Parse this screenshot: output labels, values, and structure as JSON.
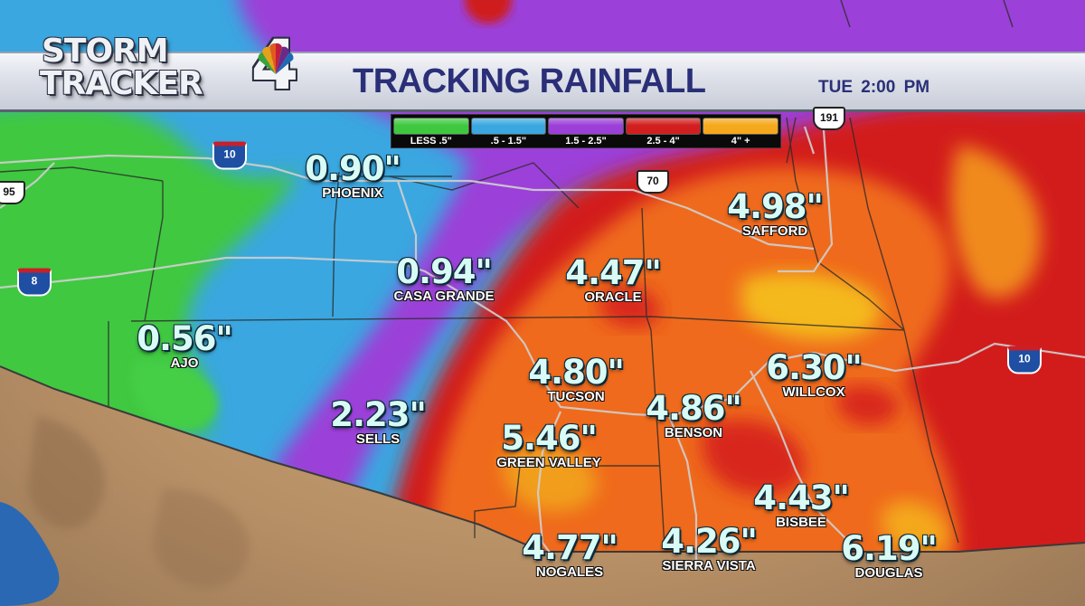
{
  "header": {
    "logo_word_1": "STORM",
    "logo_word_2": "TRACKER",
    "logo_number": "4",
    "title": "TRACKING RAINFALL",
    "timestamp": "TUE  2:00 PM"
  },
  "legend": [
    {
      "label": "LESS .5\"",
      "color": "#3fc83f"
    },
    {
      "label": ".5 - 1.5\"",
      "color": "#3aa7e0"
    },
    {
      "label": "1.5 - 2.5\"",
      "color": "#9b3fd8"
    },
    {
      "label": "2.5 - 4\"",
      "color": "#d21e1e"
    },
    {
      "label": "4\" +",
      "color": "#f5a81c"
    }
  ],
  "highways": {
    "i10_west": "10",
    "i10_east": "10",
    "i8": "8",
    "r95": "95",
    "us70": "70",
    "us191": "191"
  },
  "cities": {
    "phoenix": {
      "name": "PHOENIX",
      "value": "0.90\""
    },
    "casa_grande": {
      "name": "CASA GRANDE",
      "value": "0.94\""
    },
    "oracle": {
      "name": "ORACLE",
      "value": "4.47\""
    },
    "safford": {
      "name": "SAFFORD",
      "value": "4.98\""
    },
    "ajo": {
      "name": "AJO",
      "value": "0.56\""
    },
    "tucson": {
      "name": "TUCSON",
      "value": "4.80\""
    },
    "willcox": {
      "name": "WILLCOX",
      "value": "6.30\""
    },
    "sells": {
      "name": "SELLS",
      "value": "2.23\""
    },
    "benson": {
      "name": "BENSON",
      "value": "4.86\""
    },
    "green_valley": {
      "name": "GREEN VALLEY",
      "value": "5.46\""
    },
    "bisbee": {
      "name": "BISBEE",
      "value": "4.43\""
    },
    "nogales": {
      "name": "NOGALES",
      "value": "4.77\""
    },
    "sierra_vista": {
      "name": "SIERRA VISTA",
      "value": "4.26\""
    },
    "douglas": {
      "name": "DOUGLAS",
      "value": "6.19\""
    }
  }
}
